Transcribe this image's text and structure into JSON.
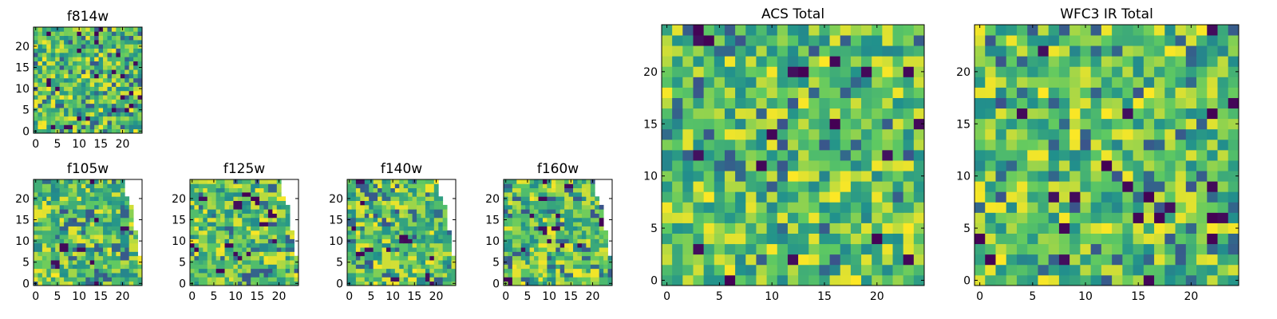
{
  "chart_data": [
    {
      "type": "heatmap",
      "title": "f814w",
      "x_ticks": [
        "0",
        "5",
        "10",
        "15",
        "20"
      ],
      "y_ticks": [
        "0",
        "5",
        "10",
        "15",
        "20"
      ],
      "xlim": [
        -0.5,
        24.5
      ],
      "ylim": [
        -0.5,
        24.5
      ],
      "grid_size": 25,
      "pattern": "full-field",
      "colormap": "viridis"
    },
    {
      "type": "heatmap",
      "title": "f105w",
      "x_ticks": [
        "0",
        "5",
        "10",
        "15",
        "20"
      ],
      "y_ticks": [
        "0",
        "5",
        "10",
        "15",
        "20"
      ],
      "xlim": [
        -0.5,
        24.5
      ],
      "ylim": [
        -0.5,
        24.5
      ],
      "grid_size": 25,
      "pattern": "cropped-right-edge",
      "colormap": "viridis"
    },
    {
      "type": "heatmap",
      "title": "f125w",
      "x_ticks": [
        "0",
        "5",
        "10",
        "15",
        "20"
      ],
      "y_ticks": [
        "0",
        "5",
        "10",
        "15",
        "20"
      ],
      "xlim": [
        -0.5,
        24.5
      ],
      "ylim": [
        -0.5,
        24.5
      ],
      "grid_size": 25,
      "pattern": "cropped-right-edge",
      "colormap": "viridis"
    },
    {
      "type": "heatmap",
      "title": "f140w",
      "x_ticks": [
        "0",
        "5",
        "10",
        "15",
        "20"
      ],
      "y_ticks": [
        "0",
        "5",
        "10",
        "15",
        "20"
      ],
      "xlim": [
        -0.5,
        24.5
      ],
      "ylim": [
        -0.5,
        24.5
      ],
      "grid_size": 25,
      "pattern": "cropped-right-edge",
      "colormap": "viridis"
    },
    {
      "type": "heatmap",
      "title": "f160w",
      "x_ticks": [
        "0",
        "5",
        "10",
        "15",
        "20"
      ],
      "y_ticks": [
        "0",
        "5",
        "10",
        "15",
        "20"
      ],
      "xlim": [
        -0.5,
        24.5
      ],
      "ylim": [
        -0.5,
        24.5
      ],
      "grid_size": 25,
      "pattern": "cropped-right-edge",
      "colormap": "viridis"
    },
    {
      "type": "heatmap",
      "title": "ACS Total",
      "x_ticks": [
        "0",
        "5",
        "10",
        "15",
        "20"
      ],
      "y_ticks": [
        "0",
        "5",
        "10",
        "15",
        "20"
      ],
      "xlim": [
        -0.5,
        24.5
      ],
      "ylim": [
        -0.5,
        24.5
      ],
      "grid_size": 25,
      "pattern": "full-field",
      "colormap": "viridis"
    },
    {
      "type": "heatmap",
      "title": "WFC3 IR Total",
      "x_ticks": [
        "0",
        "5",
        "10",
        "15",
        "20"
      ],
      "y_ticks": [
        "0",
        "5",
        "10",
        "15",
        "20"
      ],
      "xlim": [
        -0.5,
        24.5
      ],
      "ylim": [
        -0.5,
        24.5
      ],
      "grid_size": 25,
      "pattern": "full-field",
      "colormap": "viridis"
    }
  ],
  "colors": {
    "viridis_dark": "#440154",
    "viridis_blue": "#31688e",
    "viridis_teal": "#21918c",
    "viridis_green": "#5ec962",
    "viridis_yellow": "#fde725",
    "axes_frame": "#000000",
    "background": "#ffffff"
  }
}
